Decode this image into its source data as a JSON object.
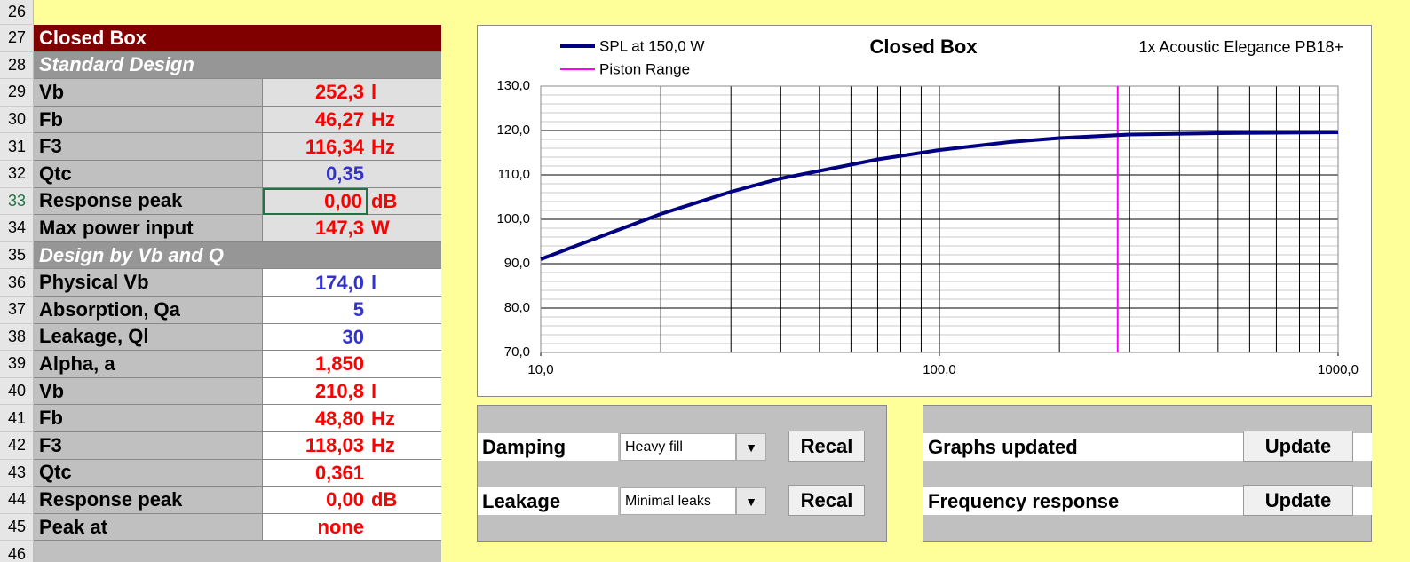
{
  "sheet": {
    "rows": [
      {
        "num": "26"
      },
      {
        "num": "27",
        "label": "Closed Box",
        "style": "title"
      },
      {
        "num": "28",
        "label": "Standard Design",
        "style": "section"
      },
      {
        "num": "29",
        "label": "Vb",
        "value": "252,3",
        "unit": "l",
        "color": "red",
        "fill": "gray"
      },
      {
        "num": "30",
        "label": "Fb",
        "value": "46,27",
        "unit": "Hz",
        "color": "red",
        "fill": "gray"
      },
      {
        "num": "31",
        "label": "F3",
        "value": "116,34",
        "unit": "Hz",
        "color": "red",
        "fill": "gray"
      },
      {
        "num": "32",
        "label": "Qtc",
        "value": "0,35",
        "color": "blue",
        "fill": "gray"
      },
      {
        "num": "33",
        "label": "Response peak",
        "value": "0,00",
        "unit": "dB",
        "color": "red",
        "fill": "gray",
        "selected": true
      },
      {
        "num": "34",
        "label": "Max power input",
        "value": "147,3",
        "unit": "W",
        "color": "red",
        "fill": "gray"
      },
      {
        "num": "35",
        "label": "Design by Vb and Q",
        "style": "section"
      },
      {
        "num": "36",
        "label": "Physical Vb",
        "value": "174,0",
        "unit": "l",
        "color": "blue",
        "fill": "white"
      },
      {
        "num": "37",
        "label": "Absorption, Qa",
        "value": "5",
        "color": "blue",
        "fill": "white"
      },
      {
        "num": "38",
        "label": "Leakage, Ql",
        "value": "30",
        "color": "blue",
        "fill": "white"
      },
      {
        "num": "39",
        "label": "Alpha, a",
        "value": "1,850",
        "color": "red",
        "fill": "white"
      },
      {
        "num": "40",
        "label": "Vb",
        "value": "210,8",
        "unit": "l",
        "color": "red",
        "fill": "white"
      },
      {
        "num": "41",
        "label": "Fb",
        "value": "48,80",
        "unit": "Hz",
        "color": "red",
        "fill": "white"
      },
      {
        "num": "42",
        "label": "F3",
        "value": "118,03",
        "unit": "Hz",
        "color": "red",
        "fill": "white"
      },
      {
        "num": "43",
        "label": "Qtc",
        "value": "0,361",
        "color": "red",
        "fill": "white"
      },
      {
        "num": "44",
        "label": "Response peak",
        "value": "0,00",
        "unit": "dB",
        "color": "red",
        "fill": "white"
      },
      {
        "num": "45",
        "label": "Peak at",
        "value": "none",
        "color": "red",
        "fill": "white"
      },
      {
        "num": "46"
      }
    ],
    "controls": [
      {
        "label": "Damping",
        "select": "Heavy fill",
        "button": "Recal"
      },
      {
        "label": "Leakage",
        "select": "Minimal leaks",
        "button": "Recal"
      }
    ],
    "status": [
      {
        "label": "Graphs updated",
        "button": "Update"
      },
      {
        "label": "Frequency response",
        "button": "Update"
      }
    ]
  },
  "chart_data": {
    "type": "line",
    "title": "Closed Box",
    "subtitle": "1x Acoustic Elegance PB18+",
    "x": [
      10,
      15,
      20,
      30,
      40,
      50,
      70,
      100,
      150,
      200,
      300,
      500,
      700,
      1000
    ],
    "series": [
      {
        "name": "SPL at 150,0 W",
        "color": "#000080",
        "values": [
          91,
          97,
          101.2,
          106.2,
          109.2,
          110.9,
          113.5,
          115.6,
          117.4,
          118.3,
          119.1,
          119.4,
          119.5,
          119.6
        ]
      }
    ],
    "markers": [
      {
        "name": "Piston Range",
        "color": "#ff00ff",
        "x": 280
      }
    ],
    "xlim": [
      10,
      1000
    ],
    "ylim": [
      70,
      130
    ],
    "xticks": [
      {
        "value": 10,
        "label": "10,0"
      },
      {
        "value": 100,
        "label": "100,0"
      },
      {
        "value": 1000,
        "label": "1000,0"
      }
    ],
    "yticks": [
      {
        "value": 70,
        "label": "70,0"
      },
      {
        "value": 80,
        "label": "80,0"
      },
      {
        "value": 90,
        "label": "90,0"
      },
      {
        "value": 100,
        "label": "100,0"
      },
      {
        "value": 110,
        "label": "110,0"
      },
      {
        "value": 120,
        "label": "120,0"
      },
      {
        "value": 130,
        "label": "130,0"
      }
    ],
    "x_log": true,
    "grid": true
  }
}
